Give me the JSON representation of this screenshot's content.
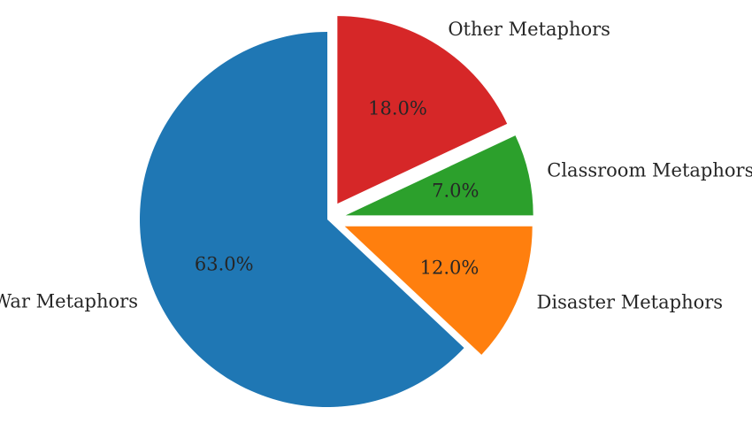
{
  "chart_data": {
    "type": "pie",
    "labels": [
      "War Metaphors",
      "Disaster Metaphors",
      "Classroom Metaphors",
      "Other Metaphors"
    ],
    "values": [
      63.0,
      12.0,
      7.0,
      18.0
    ],
    "percent_labels": [
      "63.0%",
      "12.0%",
      "7.0%",
      "18.0%"
    ],
    "colors": [
      "#1f77b4",
      "#ff7f0e",
      "#2ca02c",
      "#d62728"
    ],
    "explode": [
      0.0,
      0.1,
      0.1,
      0.1
    ],
    "start_angle": 90,
    "direction": "counterclockwise",
    "title": ""
  }
}
